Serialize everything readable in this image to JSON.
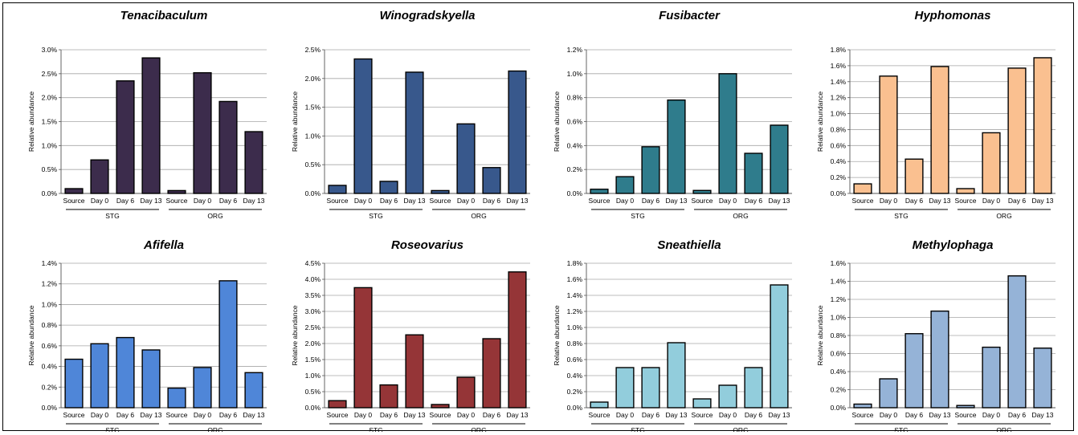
{
  "chart_data": [
    {
      "type": "bar",
      "title": "Tenacibaculum",
      "ylabel": "Relative abundance",
      "ylim": [
        0,
        3.0
      ],
      "yticks": [
        "0.0%",
        "0.5%",
        "1.0%",
        "1.5%",
        "2.0%",
        "2.5%",
        "3.0%"
      ],
      "categories": [
        "Source",
        "Day 0",
        "Day 6",
        "Day 13",
        "Source",
        "Day 0",
        "Day 6",
        "Day 13"
      ],
      "groups": [
        "STG",
        "ORG"
      ],
      "values": [
        0.1,
        0.7,
        2.35,
        2.83,
        0.06,
        2.52,
        1.92,
        1.29
      ],
      "color": "#3c2c4c",
      "grid": true
    },
    {
      "type": "bar",
      "title": "Winogradskyella",
      "ylabel": "Relative abundance",
      "ylim": [
        0,
        2.5
      ],
      "yticks": [
        "0.0%",
        "0.5%",
        "1.0%",
        "1.5%",
        "2.0%",
        "2.5%"
      ],
      "categories": [
        "Source",
        "Day 0",
        "Day 6",
        "Day 13",
        "Source",
        "Day 0",
        "Day 6",
        "Day 13"
      ],
      "groups": [
        "STG",
        "ORG"
      ],
      "values": [
        0.14,
        2.34,
        0.21,
        2.11,
        0.05,
        1.21,
        0.45,
        2.13
      ],
      "color": "#38588c",
      "grid": true
    },
    {
      "type": "bar",
      "title": "Fusibacter",
      "ylabel": "Relative abundance",
      "ylim": [
        0,
        1.2
      ],
      "yticks": [
        "0.0%",
        "0.2%",
        "0.4%",
        "0.6%",
        "0.8%",
        "1.0%",
        "1.2%"
      ],
      "categories": [
        "Source",
        "Day 0",
        "Day 6",
        "Day 13",
        "Source",
        "Day 0",
        "Day 6",
        "Day 13"
      ],
      "groups": [
        "STG",
        "ORG"
      ],
      "values": [
        0.035,
        0.14,
        0.39,
        0.78,
        0.025,
        1.0,
        0.335,
        0.57
      ],
      "color": "#2f7c8c",
      "grid": true
    },
    {
      "type": "bar",
      "title": "Hyphomonas",
      "ylabel": "Relative abundance",
      "ylim": [
        0,
        1.8
      ],
      "yticks": [
        "0.0%",
        "0.2%",
        "0.4%",
        "0.6%",
        "0.8%",
        "1.0%",
        "1.2%",
        "1.4%",
        "1.6%",
        "1.8%"
      ],
      "categories": [
        "Source",
        "Day 0",
        "Day 6",
        "Day 13",
        "Source",
        "Day 0",
        "Day 6",
        "Day 13"
      ],
      "groups": [
        "STG",
        "ORG"
      ],
      "values": [
        0.12,
        1.47,
        0.43,
        1.59,
        0.06,
        0.76,
        1.57,
        1.7
      ],
      "color": "#fac090",
      "grid": true
    },
    {
      "type": "bar",
      "title": "Afifella",
      "ylabel": "Relative abundance",
      "ylim": [
        0,
        1.4
      ],
      "yticks": [
        "0.0%",
        "0.2%",
        "0.4%",
        "0.6%",
        "0.8%",
        "1.0%",
        "1.2%",
        "1.4%"
      ],
      "categories": [
        "Source",
        "Day 0",
        "Day 6",
        "Day 13",
        "Source",
        "Day 0",
        "Day 6",
        "Day 13"
      ],
      "groups": [
        "STG",
        "ORG"
      ],
      "values": [
        0.47,
        0.62,
        0.68,
        0.56,
        0.19,
        0.39,
        1.23,
        0.34
      ],
      "color": "#4f86d8",
      "grid": true
    },
    {
      "type": "bar",
      "title": "Roseovarius",
      "ylabel": "Relative abundance",
      "ylim": [
        0,
        4.5
      ],
      "yticks": [
        "0.0%",
        "0.5%",
        "1.0%",
        "1.5%",
        "2.0%",
        "2.5%",
        "3.0%",
        "3.5%",
        "4.0%",
        "4.5%"
      ],
      "categories": [
        "Source",
        "Day 0",
        "Day 6",
        "Day 13",
        "Source",
        "Day 0",
        "Day 6",
        "Day 13"
      ],
      "groups": [
        "STG",
        "ORG"
      ],
      "values": [
        0.22,
        3.74,
        0.71,
        2.27,
        0.1,
        0.95,
        2.15,
        4.23
      ],
      "color": "#953537",
      "grid": true
    },
    {
      "type": "bar",
      "title": "Sneathiella",
      "ylabel": "Relative abundance",
      "ylim": [
        0,
        1.8
      ],
      "yticks": [
        "0.0%",
        "0.2%",
        "0.4%",
        "0.6%",
        "0.8%",
        "1.0%",
        "1.2%",
        "1.4%",
        "1.6%",
        "1.8%"
      ],
      "categories": [
        "Source",
        "Day 0",
        "Day 6",
        "Day 13",
        "Source",
        "Day 0",
        "Day 6",
        "Day 13"
      ],
      "groups": [
        "STG",
        "ORG"
      ],
      "values": [
        0.07,
        0.5,
        0.5,
        0.81,
        0.11,
        0.28,
        0.5,
        1.53
      ],
      "color": "#92cddc",
      "grid": true
    },
    {
      "type": "bar",
      "title": "Methylophaga",
      "ylabel": "Relative abundance",
      "ylim": [
        0,
        1.6
      ],
      "yticks": [
        "0.0%",
        "0.2%",
        "0.4%",
        "0.6%",
        "0.8%",
        "1.0%",
        "1.2%",
        "1.4%",
        "1.6%"
      ],
      "categories": [
        "Source",
        "Day 0",
        "Day 6",
        "Day 13",
        "Source",
        "Day 0",
        "Day 6",
        "Day 13"
      ],
      "groups": [
        "STG",
        "ORG"
      ],
      "values": [
        0.04,
        0.32,
        0.82,
        1.07,
        0.025,
        0.67,
        1.46,
        0.66
      ],
      "color": "#95b3d7",
      "grid": true
    }
  ]
}
